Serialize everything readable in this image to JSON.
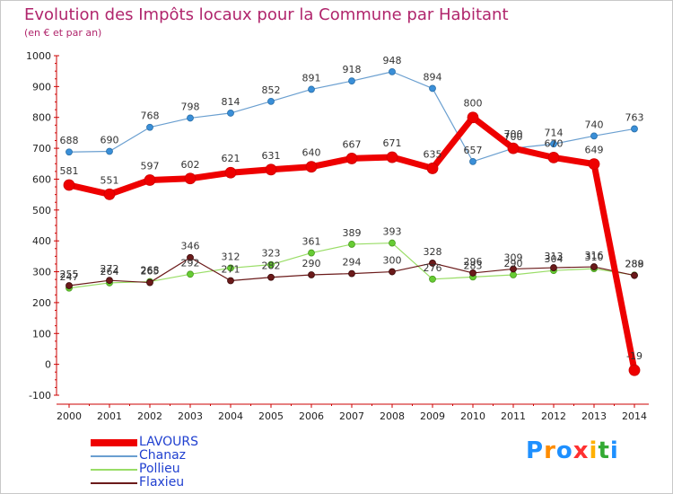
{
  "chart_data": {
    "type": "line",
    "title": "Evolution des Impôts locaux pour la Commune par Habitant",
    "subtitle": "(en € et par an)",
    "x": [
      "2000",
      "2001",
      "2002",
      "2003",
      "2004",
      "2005",
      "2006",
      "2007",
      "2008",
      "2009",
      "2010",
      "2011",
      "2012",
      "2013",
      "2014"
    ],
    "ylim": [
      -100,
      1000
    ],
    "yticks": [
      -100,
      0,
      100,
      200,
      300,
      400,
      500,
      600,
      700,
      800,
      900,
      1000
    ],
    "grid": false,
    "legend_position": "bottom-left",
    "series": [
      {
        "name": "LAVOURS",
        "color": "#ee0000",
        "values": [
          581,
          551,
          597,
          602,
          621,
          631,
          640,
          667,
          671,
          635,
          800,
          700,
          670,
          649,
          -19
        ]
      },
      {
        "name": "Chanaz",
        "color": "#6a9fd0",
        "values": [
          688,
          690,
          768,
          798,
          814,
          852,
          891,
          918,
          948,
          894,
          657,
          700,
          714,
          740,
          763
        ]
      },
      {
        "name": "Pollieu",
        "color": "#99dd66",
        "values": [
          247,
          264,
          268,
          292,
          312,
          323,
          361,
          389,
          393,
          276,
          283,
          290,
          304,
          310,
          289
        ]
      },
      {
        "name": "Flaxieu",
        "color": "#6b1a1a",
        "values": [
          255,
          272,
          265,
          346,
          271,
          282,
          290,
          294,
          300,
          328,
          296,
          309,
          313,
          316,
          288
        ]
      }
    ]
  },
  "brand": {
    "text": "Proxiti",
    "letter_colors": [
      "#1e90ff",
      "#ff8c00",
      "#1e90ff",
      "#ff3030",
      "#ffb000",
      "#33aa33",
      "#1e90ff"
    ]
  }
}
